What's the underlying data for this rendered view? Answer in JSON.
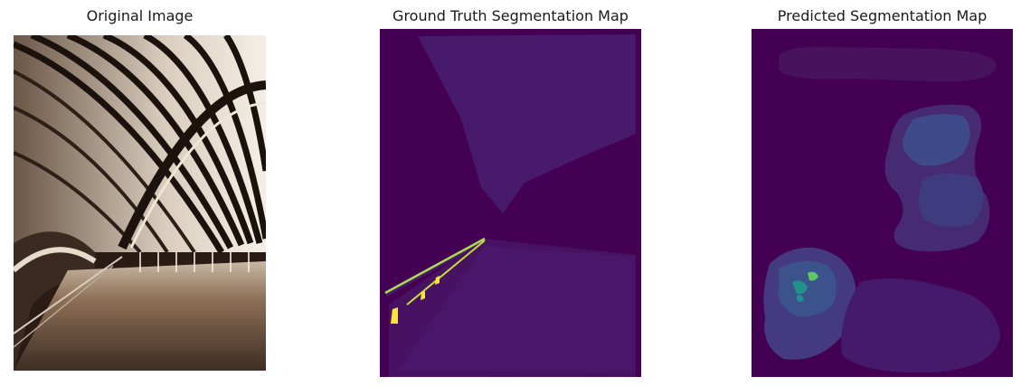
{
  "panels": [
    {
      "title": "Original Image"
    },
    {
      "title": "Ground Truth Segmentation Map"
    },
    {
      "title": "Predicted Segmentation Map"
    }
  ],
  "colors": {
    "background": "#ffffff",
    "viridis_dark": "#440154",
    "viridis_purple": "#481a6c",
    "viridis_blue": "#3b528b",
    "viridis_teal": "#21918c",
    "viridis_green": "#5ec962",
    "viridis_yellow": "#fde725"
  }
}
